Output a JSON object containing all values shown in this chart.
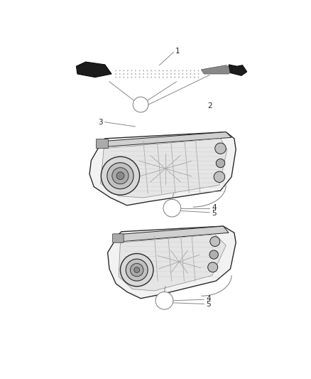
{
  "background_color": "#ffffff",
  "fig_width": 4.38,
  "fig_height": 5.33,
  "dpi": 100,
  "edge_color": "#2a2a2a",
  "fill_light": "#f0f0f0",
  "fill_mid": "#c8c8c8",
  "fill_dark": "#1a1a1a",
  "callout_color": "#888888",
  "text_color": "#222222",
  "line_color": "#444444"
}
